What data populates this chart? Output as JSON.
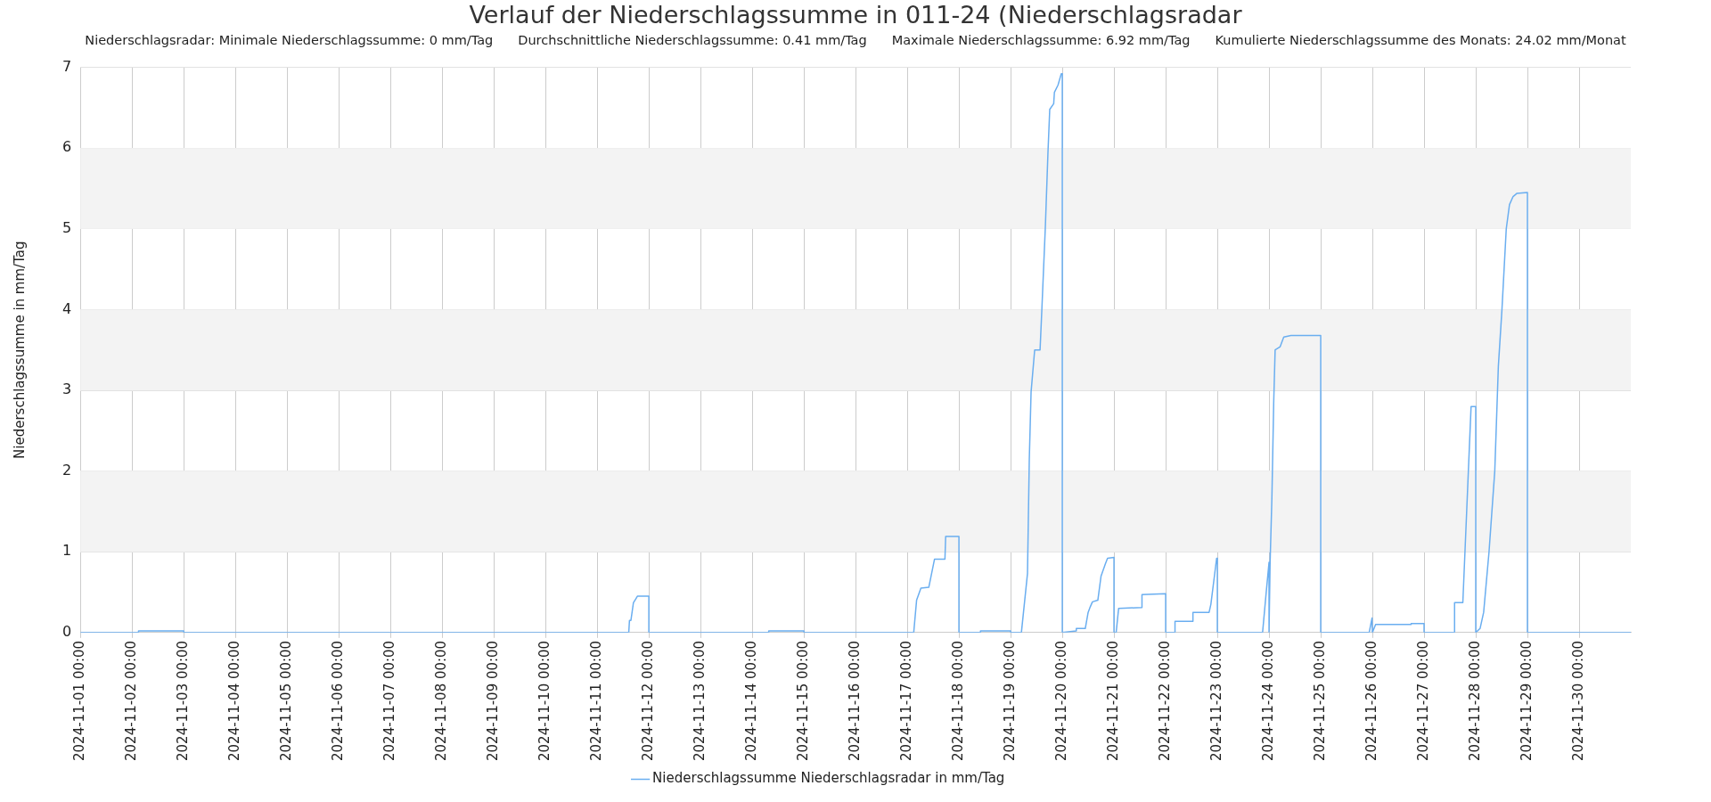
{
  "chart_data": {
    "type": "line",
    "title": "Verlauf der Niederschlagssumme in 011-24 (Niederschlagsradar",
    "annotations": [
      "Niederschlagsradar: Minimale Niederschlagssumme: 0 mm/Tag",
      "Durchschnittliche Niederschlagssumme: 0.41 mm/Tag",
      "Maximale Niederschlagssumme: 6.92 mm/Tag",
      "Kumulierte Niederschlagssumme des Monats: 24.02 mm/Monat"
    ],
    "ylabel": "Niederschlagssumme in mm/Tag",
    "x": [
      "2024-11-01T00:00",
      "2024-11-02T03:00",
      "2024-11-02T03:00",
      "2024-11-03T00:00",
      "2024-11-03T00:00",
      "2024-11-11T14:40",
      "2024-11-11T15:00",
      "2024-11-11T15:40",
      "2024-11-11T16:50",
      "2024-11-11T18:00",
      "2024-11-11T18:40",
      "2024-11-12T00:00",
      "2024-11-12T00:00",
      "2024-11-14T07:40",
      "2024-11-14T07:40",
      "2024-11-15T00:00",
      "2024-11-15T00:00",
      "2024-11-17T03:00",
      "2024-11-17T04:20",
      "2024-11-17T06:20",
      "2024-11-17T10:00",
      "2024-11-17T12:40",
      "2024-11-17T17:30",
      "2024-11-17T17:50",
      "2024-11-18T00:00",
      "2024-11-18T00:00",
      "2024-11-18T10:00",
      "2024-11-18T10:00",
      "2024-11-19T00:00",
      "2024-11-19T00:00",
      "2024-11-19T05:00",
      "2024-11-19T07:50",
      "2024-11-19T08:40",
      "2024-11-19T09:30",
      "2024-11-19T11:10",
      "2024-11-19T13:40",
      "2024-11-19T14:30",
      "2024-11-19T16:10",
      "2024-11-19T17:20",
      "2024-11-19T18:10",
      "2024-11-19T20:00",
      "2024-11-19T20:20",
      "2024-11-19T22:00",
      "2024-11-19T23:30",
      "2024-11-20T00:00",
      "2024-11-20T00:00",
      "2024-11-20T06:30",
      "2024-11-20T06:30",
      "2024-11-20T10:40",
      "2024-11-20T12:00",
      "2024-11-20T13:00",
      "2024-11-20T14:00",
      "2024-11-20T16:30",
      "2024-11-20T18:00",
      "2024-11-20T20:00",
      "2024-11-20T21:00",
      "2024-11-21T00:00",
      "2024-11-21T00:00",
      "2024-11-21T01:00",
      "2024-11-21T02:10",
      "2024-11-21T13:00",
      "2024-11-21T13:00",
      "2024-11-22T00:00",
      "2024-11-22T00:00",
      "2024-11-22T04:20",
      "2024-11-22T04:20",
      "2024-11-22T12:40",
      "2024-11-22T12:40",
      "2024-11-22T20:10",
      "2024-11-22T21:00",
      "2024-11-22T23:40",
      "2024-11-23T00:00",
      "2024-11-23T00:00",
      "2024-11-23T21:00",
      "2024-11-23T22:40",
      "2024-11-24T00:00",
      "2024-11-24T00:00",
      "2024-11-24T00:30",
      "2024-11-24T01:20",
      "2024-11-24T02:10",
      "2024-11-24T02:50",
      "2024-11-24T05:10",
      "2024-11-24T06:50",
      "2024-11-24T10:10",
      "2024-11-25T00:00",
      "2024-11-25T00:00",
      "2024-11-25T22:30",
      "2024-11-25T23:50",
      "2024-11-26T00:00",
      "2024-11-26T01:30",
      "2024-11-26T18:00",
      "2024-11-26T18:00",
      "2024-11-27T00:00",
      "2024-11-27T00:00",
      "2024-11-27T14:10",
      "2024-11-27T14:10",
      "2024-11-27T18:00",
      "2024-11-27T21:50",
      "2024-11-28T00:00",
      "2024-11-28T00:00",
      "2024-11-28T02:00",
      "2024-11-28T03:40",
      "2024-11-28T06:10",
      "2024-11-28T08:50",
      "2024-11-28T10:30",
      "2024-11-28T12:10",
      "2024-11-28T14:10",
      "2024-11-28T15:40",
      "2024-11-28T17:20",
      "2024-11-28T19:10",
      "2024-11-29T00:00",
      "2024-11-29T00:00",
      "2024-12-01T00:00"
    ],
    "series": [
      {
        "name": "Niederschlagssumme Niederschlagsradar in mm/Tag",
        "color": "#6aaef0",
        "values": [
          0,
          0,
          0.02,
          0.02,
          0,
          0,
          0.15,
          0.15,
          0.37,
          0.42,
          0.45,
          0.45,
          0,
          0,
          0.02,
          0.02,
          0,
          0,
          0.4,
          0.55,
          0.56,
          0.91,
          0.91,
          1.19,
          1.19,
          0,
          0,
          0.02,
          0.02,
          0,
          0,
          0.73,
          2.14,
          2.98,
          3.5,
          3.5,
          4.0,
          5.05,
          5.94,
          6.48,
          6.55,
          6.69,
          6.78,
          6.92,
          6.92,
          0,
          0.02,
          0.05,
          0.05,
          0.25,
          0.32,
          0.38,
          0.4,
          0.7,
          0.85,
          0.92,
          0.93,
          0,
          0,
          0.3,
          0.31,
          0.47,
          0.48,
          0,
          0,
          0.14,
          0.14,
          0.25,
          0.25,
          0.35,
          0.92,
          0.92,
          0,
          0,
          0.49,
          0.87,
          0,
          0.87,
          1.67,
          2.84,
          3.5,
          3.54,
          3.66,
          3.68,
          3.68,
          0,
          0,
          0.18,
          0,
          0.1,
          0.1,
          0.11,
          0.11,
          0,
          0,
          0.37,
          0.37,
          2.8,
          2.8,
          0,
          0.05,
          0.25,
          1.0,
          2.0,
          3.3,
          4.0,
          5.0,
          5.3,
          5.4,
          5.44,
          5.45,
          0,
          0
        ]
      }
    ],
    "xlim": [
      "2024-11-01T00:00",
      "2024-12-01T00:00"
    ],
    "xticks": [
      {
        "value": "2024-11-01T00:00",
        "label": "2024-11-01 00:00"
      },
      {
        "value": "2024-11-02T00:00",
        "label": "2024-11-02 00:00"
      },
      {
        "value": "2024-11-03T00:00",
        "label": "2024-11-03 00:00"
      },
      {
        "value": "2024-11-04T00:00",
        "label": "2024-11-04 00:00"
      },
      {
        "value": "2024-11-05T00:00",
        "label": "2024-11-05 00:00"
      },
      {
        "value": "2024-11-06T00:00",
        "label": "2024-11-06 00:00"
      },
      {
        "value": "2024-11-07T00:00",
        "label": "2024-11-07 00:00"
      },
      {
        "value": "2024-11-08T00:00",
        "label": "2024-11-08 00:00"
      },
      {
        "value": "2024-11-09T00:00",
        "label": "2024-11-09 00:00"
      },
      {
        "value": "2024-11-10T00:00",
        "label": "2024-11-10 00:00"
      },
      {
        "value": "2024-11-11T00:00",
        "label": "2024-11-11 00:00"
      },
      {
        "value": "2024-11-12T00:00",
        "label": "2024-11-12 00:00"
      },
      {
        "value": "2024-11-13T00:00",
        "label": "2024-11-13 00:00"
      },
      {
        "value": "2024-11-14T00:00",
        "label": "2024-11-14 00:00"
      },
      {
        "value": "2024-11-15T00:00",
        "label": "2024-11-15 00:00"
      },
      {
        "value": "2024-11-16T00:00",
        "label": "2024-11-16 00:00"
      },
      {
        "value": "2024-11-17T00:00",
        "label": "2024-11-17 00:00"
      },
      {
        "value": "2024-11-18T00:00",
        "label": "2024-11-18 00:00"
      },
      {
        "value": "2024-11-19T00:00",
        "label": "2024-11-19 00:00"
      },
      {
        "value": "2024-11-20T00:00",
        "label": "2024-11-20 00:00"
      },
      {
        "value": "2024-11-21T00:00",
        "label": "2024-11-21 00:00"
      },
      {
        "value": "2024-11-22T00:00",
        "label": "2024-11-22 00:00"
      },
      {
        "value": "2024-11-23T00:00",
        "label": "2024-11-23 00:00"
      },
      {
        "value": "2024-11-24T00:00",
        "label": "2024-11-24 00:00"
      },
      {
        "value": "2024-11-25T00:00",
        "label": "2024-11-25 00:00"
      },
      {
        "value": "2024-11-26T00:00",
        "label": "2024-11-26 00:00"
      },
      {
        "value": "2024-11-27T00:00",
        "label": "2024-11-27 00:00"
      },
      {
        "value": "2024-11-28T00:00",
        "label": "2024-11-28 00:00"
      },
      {
        "value": "2024-11-29T00:00",
        "label": "2024-11-29 00:00"
      },
      {
        "value": "2024-11-30T00:00",
        "label": "2024-11-30 00:00"
      }
    ],
    "ylim": [
      0,
      7
    ],
    "yticks": [
      0,
      1,
      2,
      3,
      4,
      5,
      6,
      7
    ],
    "grid": true,
    "legend": "bottom",
    "marker": "none",
    "line_style": "solid"
  }
}
